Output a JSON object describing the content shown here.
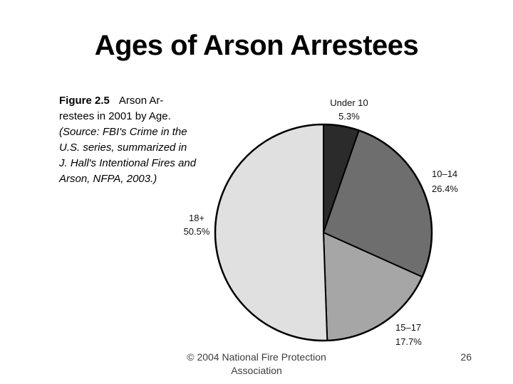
{
  "slide": {
    "title": "Ages of Arson Arrestees",
    "page_number": "26",
    "footer": {
      "line1": "© 2004 National Fire Protection",
      "line2": "Association"
    }
  },
  "caption": {
    "figure_label": "Figure 2.5",
    "line1_rest": "Arson Ar-",
    "line2": "restees in 2001 by Age.",
    "source_lines": [
      "(Source: FBI's Crime in the",
      "U.S. series, summarized in",
      "J. Hall's Intentional Fires and",
      "Arson, NFPA, 2003.)"
    ]
  },
  "chart_data": {
    "type": "pie",
    "title": "Arson Arrestees in 2001 by Age",
    "labels": [
      "Under 10",
      "10–14",
      "15–17",
      "18+"
    ],
    "values": [
      5.3,
      26.4,
      17.7,
      50.5
    ],
    "pct_labels": [
      "5.3%",
      "26.4%",
      "17.7%",
      "50.5%"
    ],
    "colors": [
      "#2b2b2b",
      "#6e6e6e",
      "#a6a6a6",
      "#e0e0e0"
    ],
    "outline_color": "#000000",
    "start_angle_deg": 0,
    "direction": "clockwise",
    "legend": "none",
    "label_placement": "outside"
  }
}
